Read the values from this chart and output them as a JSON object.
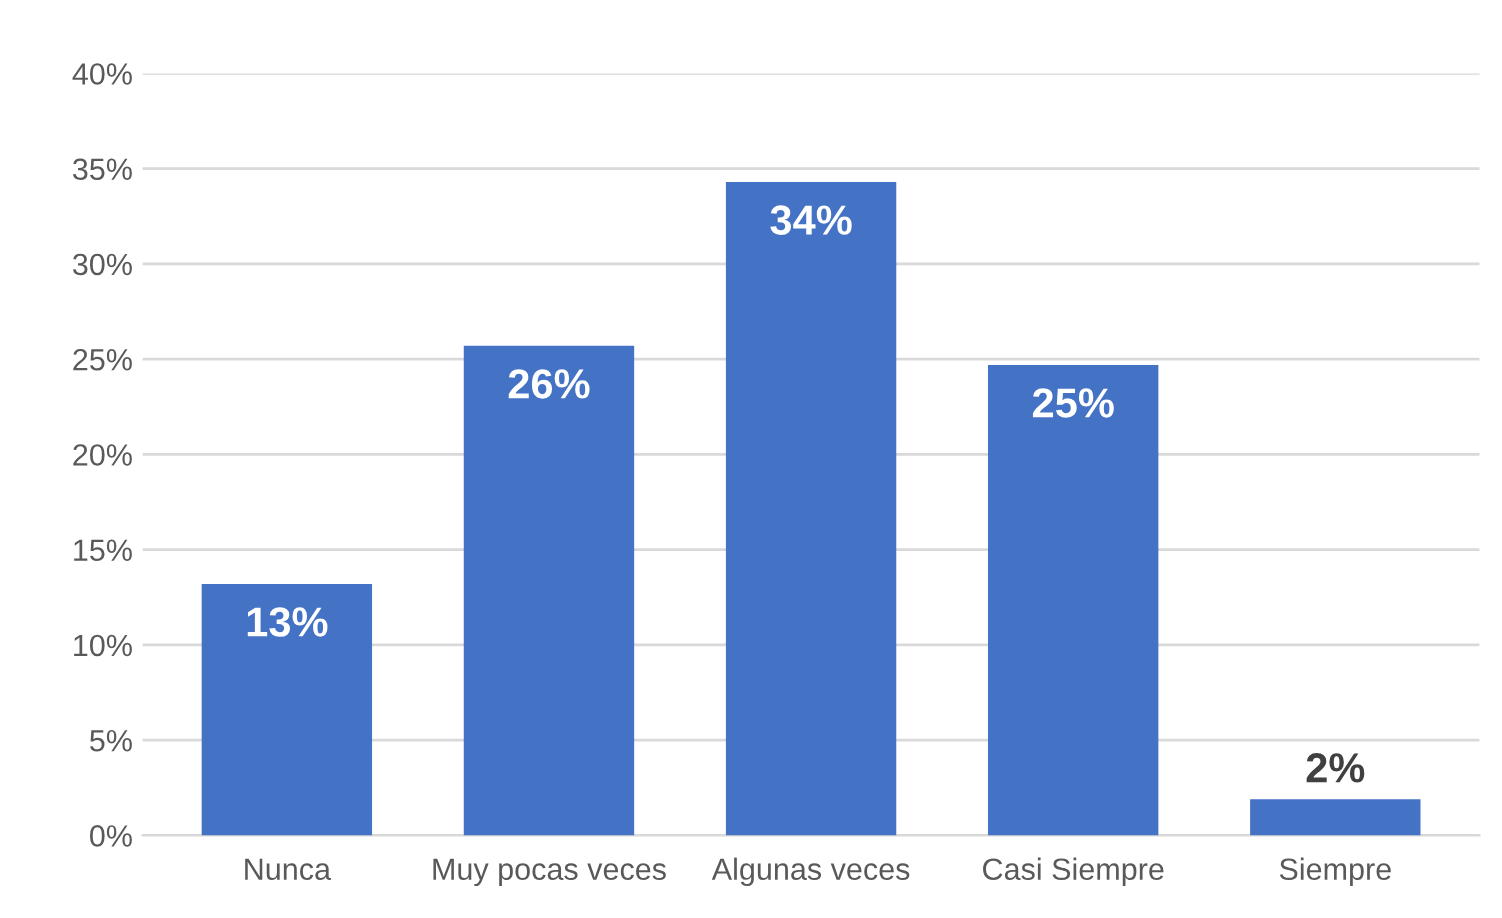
{
  "chart_data": {
    "type": "bar",
    "categories": [
      "Nunca",
      "Muy pocas veces",
      "Algunas veces",
      "Casi Siempre",
      "Siempre"
    ],
    "values": [
      13.2,
      25.7,
      34.3,
      24.7,
      1.9
    ],
    "value_labels": [
      "13%",
      "26%",
      "34%",
      "25%",
      "2%"
    ],
    "color": "#4472c4",
    "ylim": [
      0,
      40
    ],
    "yticks": [
      {
        "value": 0,
        "label": "0%"
      },
      {
        "value": 5,
        "label": "5%"
      },
      {
        "value": 10,
        "label": "10%"
      },
      {
        "value": 15,
        "label": "15%"
      },
      {
        "value": 20,
        "label": "20%"
      },
      {
        "value": 25,
        "label": "25%"
      },
      {
        "value": 30,
        "label": "30%"
      },
      {
        "value": 35,
        "label": "35%"
      },
      {
        "value": 40,
        "label": "40%"
      }
    ],
    "grid": "y",
    "legend": false
  }
}
